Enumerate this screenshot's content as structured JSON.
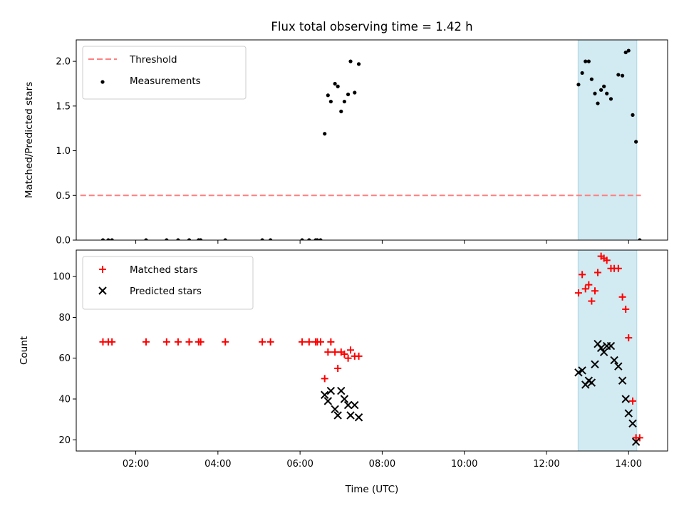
{
  "chart_data": {
    "type": "scatter",
    "title": "Flux total observing time = 1.42 h",
    "xlabel": "Time (UTC)",
    "xlim": [
      0.55,
      14.95
    ],
    "x_ticks": [
      {
        "value": 2,
        "label": "02:00"
      },
      {
        "value": 4,
        "label": "04:00"
      },
      {
        "value": 6,
        "label": "06:00"
      },
      {
        "value": 8,
        "label": "08:00"
      },
      {
        "value": 10,
        "label": "10:00"
      },
      {
        "value": 12,
        "label": "12:00"
      },
      {
        "value": 14,
        "label": "14:00"
      }
    ],
    "highlight_span": {
      "x_start": 12.77,
      "x_end": 14.2,
      "color": "#add8e6"
    },
    "panels": [
      {
        "id": "top",
        "ylabel": "Matched/Predicted stars",
        "ylim": [
          0,
          2.24
        ],
        "y_ticks": [
          {
            "value": 0,
            "label": "0.0"
          },
          {
            "value": 0.5,
            "label": "0.5"
          },
          {
            "value": 1.0,
            "label": "1.0"
          },
          {
            "value": 1.5,
            "label": "1.5"
          },
          {
            "value": 2.0,
            "label": "2.0"
          }
        ],
        "legend": {
          "position": "top-left"
        },
        "series": [
          {
            "name": "Threshold",
            "kind": "line",
            "style": "dashed",
            "color": "#ff7f7f",
            "x": [
              0.65,
              14.3
            ],
            "y": [
              0.5,
              0.5
            ]
          },
          {
            "name": "Measurements",
            "kind": "scatter",
            "marker": "dot",
            "color": "#000000",
            "x": [
              1.2,
              1.33,
              1.42,
              2.25,
              2.75,
              3.03,
              3.3,
              3.53,
              3.58,
              4.18,
              5.08,
              5.28,
              6.05,
              6.22,
              6.38,
              6.42,
              6.5,
              6.6,
              6.68,
              6.75,
              6.85,
              6.92,
              7.0,
              7.08,
              7.17,
              7.23,
              7.33,
              7.43,
              12.78,
              12.87,
              12.95,
              13.03,
              13.1,
              13.18,
              13.25,
              13.33,
              13.4,
              13.47,
              13.57,
              13.75,
              13.85,
              13.93,
              14.0,
              14.1,
              14.18,
              14.27
            ],
            "y": [
              0,
              0,
              0,
              0,
              0,
              0,
              0,
              0,
              0,
              0,
              0,
              0,
              0,
              0,
              0,
              0,
              0,
              1.19,
              1.62,
              1.55,
              1.75,
              1.72,
              1.44,
              1.55,
              1.63,
              2.0,
              1.65,
              1.97,
              1.74,
              1.87,
              2.0,
              2.0,
              1.8,
              1.64,
              1.53,
              1.68,
              1.72,
              1.64,
              1.58,
              1.85,
              1.84,
              2.1,
              2.12,
              1.4,
              1.1,
              0
            ]
          }
        ]
      },
      {
        "id": "bottom",
        "ylabel": "Count",
        "ylim": [
          14.5,
          113
        ],
        "y_ticks": [
          {
            "value": 20,
            "label": "20"
          },
          {
            "value": 40,
            "label": "40"
          },
          {
            "value": 60,
            "label": "60"
          },
          {
            "value": 80,
            "label": "80"
          },
          {
            "value": 100,
            "label": "100"
          }
        ],
        "legend": {
          "position": "top-left"
        },
        "series": [
          {
            "name": "Matched stars",
            "kind": "scatter",
            "marker": "plus",
            "color": "#ff0000",
            "x": [
              1.2,
              1.33,
              1.42,
              2.25,
              2.75,
              3.03,
              3.3,
              3.53,
              3.58,
              4.18,
              5.08,
              5.28,
              6.05,
              6.22,
              6.38,
              6.42,
              6.5,
              6.6,
              6.68,
              6.75,
              6.85,
              6.92,
              7.0,
              7.08,
              7.17,
              7.23,
              7.33,
              7.43,
              12.78,
              12.87,
              12.95,
              13.03,
              13.1,
              13.18,
              13.25,
              13.33,
              13.4,
              13.47,
              13.57,
              13.65,
              13.75,
              13.85,
              13.93,
              14.0,
              14.1,
              14.18,
              14.27
            ],
            "y": [
              68,
              68,
              68,
              68,
              68,
              68,
              68,
              68,
              68,
              68,
              68,
              68,
              68,
              68,
              68,
              68,
              68,
              50,
              63,
              68,
              63,
              55,
              63,
              62,
              60,
              64,
              61,
              61,
              92,
              101,
              94,
              96,
              88,
              93,
              102,
              110,
              109,
              108,
              104,
              104,
              104,
              90,
              84,
              70,
              39,
              21,
              21
            ]
          },
          {
            "name": "Predicted stars",
            "kind": "scatter",
            "marker": "x",
            "color": "#000000",
            "x": [
              6.6,
              6.68,
              6.75,
              6.85,
              6.92,
              7.0,
              7.08,
              7.17,
              7.23,
              7.33,
              7.43,
              12.78,
              12.87,
              12.95,
              13.03,
              13.1,
              13.18,
              13.25,
              13.33,
              13.4,
              13.47,
              13.57,
              13.65,
              13.75,
              13.85,
              13.93,
              14.0,
              14.1,
              14.18
            ],
            "y": [
              42,
              39,
              44,
              35,
              32,
              44,
              40,
              37,
              32,
              37,
              31,
              53,
              54,
              47,
              49,
              48,
              57,
              67,
              65,
              63,
              66,
              66,
              59,
              56,
              49,
              40,
              33,
              28,
              19
            ]
          }
        ]
      }
    ]
  }
}
